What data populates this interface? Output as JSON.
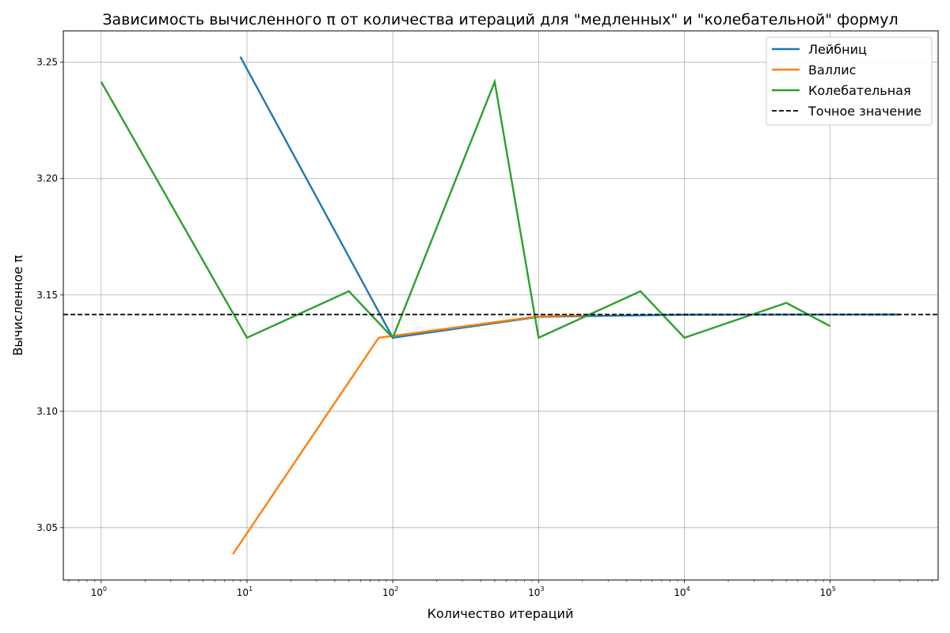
{
  "chart_data": {
    "type": "line",
    "title": "Зависимость вычисленного π от количества итераций для \"медленных\" и \"колебательной\" формул",
    "xlabel": "Количество итераций",
    "ylabel": "Вычисленное π",
    "xscale": "log",
    "xlim": [
      0.55,
      550000
    ],
    "ylim": [
      3.0275,
      3.2635
    ],
    "grid": true,
    "legend_position": "top-right",
    "x_ticks": [
      {
        "value": 1,
        "base": "10",
        "exp": "0"
      },
      {
        "value": 10,
        "base": "10",
        "exp": "1"
      },
      {
        "value": 100,
        "base": "10",
        "exp": "2"
      },
      {
        "value": 1000,
        "base": "10",
        "exp": "3"
      },
      {
        "value": 10000,
        "base": "10",
        "exp": "4"
      },
      {
        "value": 100000,
        "base": "10",
        "exp": "5"
      }
    ],
    "y_ticks": [
      {
        "value": 3.05,
        "label": "3.05"
      },
      {
        "value": 3.1,
        "label": "3.10"
      },
      {
        "value": 3.15,
        "label": "3.15"
      },
      {
        "value": 3.2,
        "label": "3.20"
      },
      {
        "value": 3.25,
        "label": "3.25"
      }
    ],
    "series": [
      {
        "name": "Лейбниц",
        "color": "#1f77b4",
        "style": "solid",
        "x": [
          9,
          100,
          1000,
          10000,
          100000,
          300000
        ],
        "y": [
          3.2524,
          3.1316,
          3.1406,
          3.1415,
          3.14158,
          3.14159
        ]
      },
      {
        "name": "Валлис",
        "color": "#ff7f0e",
        "style": "solid",
        "x": [
          8,
          80,
          1000,
          2000
        ],
        "y": [
          3.0386,
          3.1316,
          3.1408,
          3.1412
        ]
      },
      {
        "name": "Колебательная",
        "color": "#2ca02c",
        "style": "solid",
        "x": [
          1,
          10,
          50,
          100,
          500,
          1000,
          5000,
          10000,
          50000,
          100000
        ],
        "y": [
          3.2416,
          3.1316,
          3.1516,
          3.1316,
          3.2416,
          3.1316,
          3.1516,
          3.1316,
          3.1466,
          3.1366
        ]
      },
      {
        "name": "Точное значение",
        "color": "#000000",
        "style": "dashed",
        "hline": 3.14159
      }
    ]
  }
}
